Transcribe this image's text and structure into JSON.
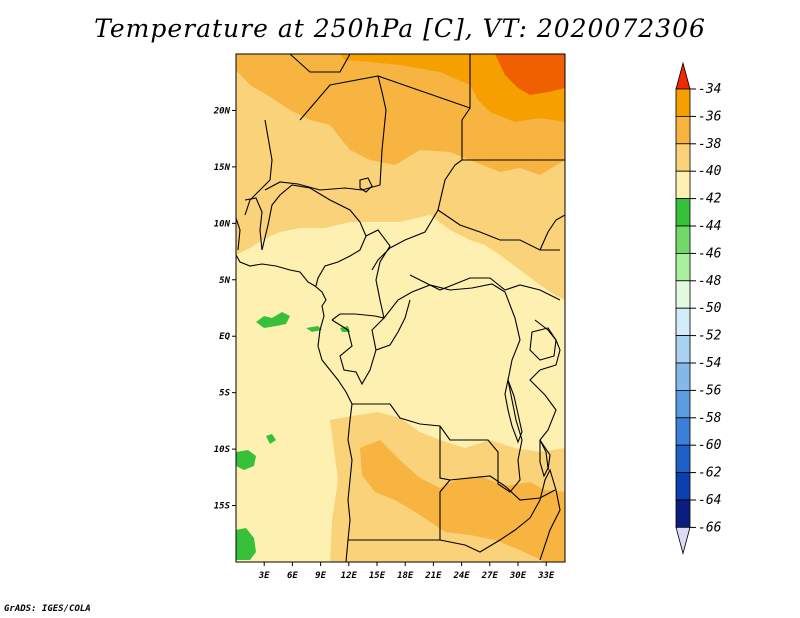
{
  "title": "Temperature at 250hPa [C], VT: 2020072306",
  "credit": "GrADS: IGES/COLA",
  "map": {
    "lat_labels": [
      "20N",
      "15N",
      "10N",
      "5N",
      "EQ",
      "5S",
      "10S",
      "15S"
    ],
    "lat_values": [
      20,
      15,
      10,
      5,
      0,
      -5,
      -10,
      -15
    ],
    "lon_labels": [
      "3E",
      "6E",
      "9E",
      "12E",
      "15E",
      "18E",
      "21E",
      "24E",
      "27E",
      "30E",
      "33E"
    ],
    "lon_values": [
      3,
      6,
      9,
      12,
      15,
      18,
      21,
      24,
      27,
      30,
      33
    ],
    "lon_range": [
      0,
      35
    ],
    "lat_range": [
      -20,
      25
    ]
  },
  "colorbar": {
    "labels": [
      "-34",
      "-36",
      "-38",
      "-40",
      "-42",
      "-44",
      "-46",
      "-48",
      "-50",
      "-52",
      "-54",
      "-56",
      "-58",
      "-60",
      "-62",
      "-64",
      "-66"
    ],
    "colors": [
      "#f06000",
      "#f5a000",
      "#f8b440",
      "#fad27a",
      "#fdf0b0",
      "#37c13a",
      "#72d86a",
      "#aaeea0",
      "#e2fae2",
      "#d2ecfa",
      "#aad2f0",
      "#82b8ea",
      "#5a9ce0",
      "#3a80d8",
      "#1e60c8",
      "#0a40b0",
      "#0a1e80"
    ],
    "top_cap_color": "#f02800",
    "bottom_cap_color": "#dcdcf8"
  },
  "chart_data": {
    "type": "heatmap",
    "title": "Temperature at 250hPa [C], VT: 2020072306",
    "variable": "Temperature at 250hPa",
    "units": "C",
    "valid_time": "2020072306",
    "x_ticks": [
      "3E",
      "6E",
      "9E",
      "12E",
      "15E",
      "18E",
      "21E",
      "24E",
      "27E",
      "30E",
      "33E"
    ],
    "y_ticks": [
      "20N",
      "15N",
      "10N",
      "5N",
      "EQ",
      "5S",
      "10S",
      "15S"
    ],
    "legend_levels": [
      -34,
      -36,
      -38,
      -40,
      -42,
      -44,
      -46,
      -48,
      -50,
      -52,
      -54,
      -56,
      -58,
      -60,
      -62,
      -64,
      -66
    ]
  }
}
